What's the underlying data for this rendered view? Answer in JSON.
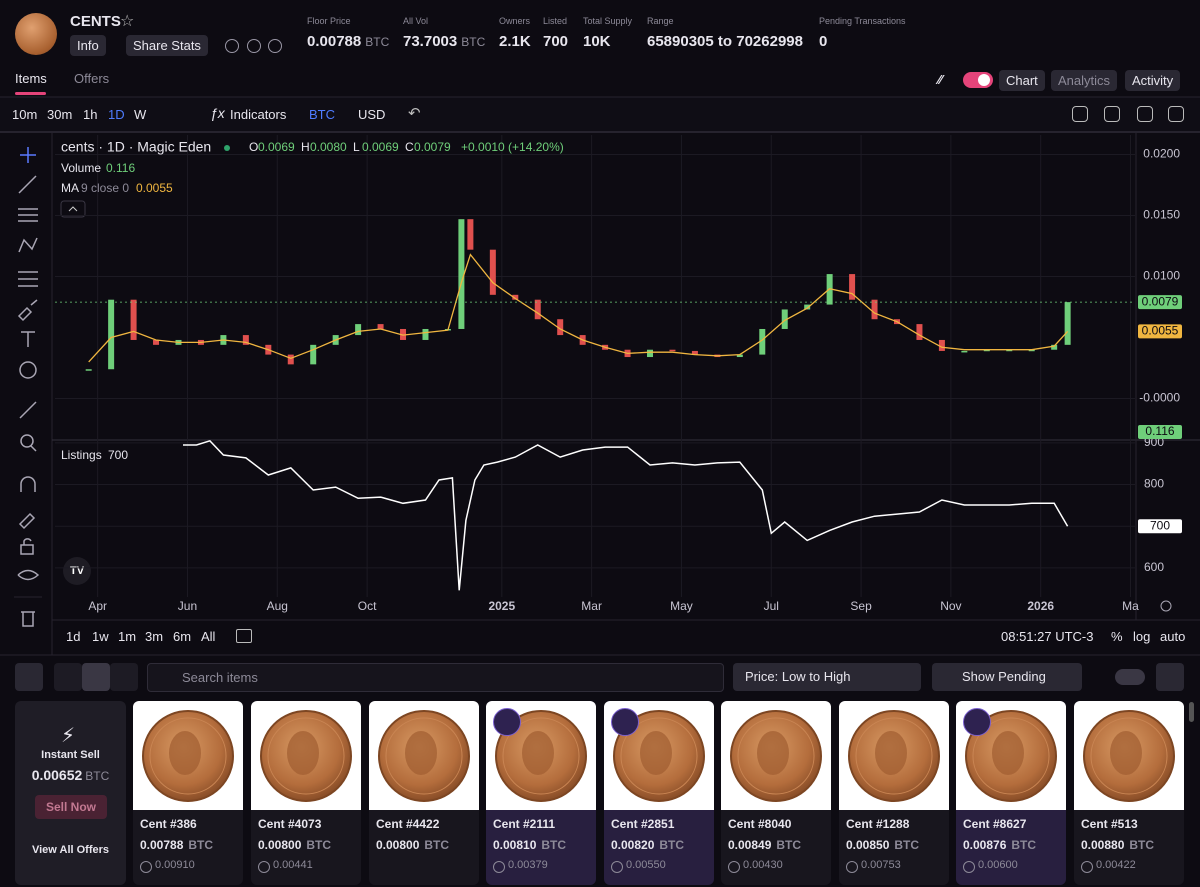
{
  "header": {
    "name": "CENTS",
    "buttons": [
      "Info",
      "Share Stats"
    ],
    "stats": [
      {
        "label": "Floor Price",
        "value": "0.00788",
        "unit": "BTC"
      },
      {
        "label": "All Vol",
        "value": "73.7003",
        "unit": "BTC"
      },
      {
        "label": "Owners",
        "value": "2.1K"
      },
      {
        "label": "Listed",
        "value": "700"
      },
      {
        "label": "Total Supply",
        "value": "10K"
      },
      {
        "label": "Range",
        "value": "65890305 to 70262998"
      },
      {
        "label": "Pending Transactions",
        "value": "0"
      }
    ]
  },
  "tabs": [
    "Items",
    "Offers"
  ],
  "views": [
    "Chart",
    "Analytics",
    "Activity"
  ],
  "toolbar": {
    "intervals": [
      "10m",
      "30m",
      "1h",
      "1D",
      "W"
    ],
    "indicators": "Indicators",
    "currencies": [
      "BTC",
      "USD"
    ]
  },
  "chart": {
    "title": "cents · 1D · Magic Eden",
    "ohlc": [
      {
        "key": "O",
        "value": "0.0069"
      },
      {
        "key": "H",
        "value": "0.0080"
      },
      {
        "key": "L",
        "value": "0.0069"
      },
      {
        "key": "C",
        "value": "0.0079"
      }
    ],
    "change": "+0.0010 (+14.20%)",
    "volume_label": "Volume",
    "volume": 0.116,
    "ma_label": "MA",
    "ma_params": "9 close 0",
    "xlim": [
      3.05,
      27.1
    ],
    "xticks": [
      {
        "value": 4,
        "label": "Apr"
      },
      {
        "value": 6,
        "label": "Jun"
      },
      {
        "value": 8,
        "label": "Aug"
      },
      {
        "value": 10,
        "label": "Oct"
      },
      {
        "value": 13,
        "label": "2025"
      },
      {
        "value": 15,
        "label": "Mar"
      },
      {
        "value": 17,
        "label": "May"
      },
      {
        "value": 19,
        "label": "Jul"
      },
      {
        "value": 21,
        "label": "Sep"
      },
      {
        "value": 23,
        "label": "Nov"
      },
      {
        "value": 25,
        "label": "2026"
      },
      {
        "value": 27,
        "label": "Ma"
      }
    ],
    "price": {
      "type": "candlestick",
      "up_color": "#6fcf7a",
      "down_color": "#e0504e",
      "ma_color": "#f0b640",
      "x": [
        3.8,
        4.3,
        4.8,
        5.3,
        5.8,
        6.3,
        6.8,
        7.3,
        7.8,
        8.3,
        8.8,
        9.3,
        9.8,
        10.3,
        10.8,
        11.3,
        11.8,
        12.1,
        12.3,
        12.8,
        13.3,
        13.8,
        14.3,
        14.8,
        15.3,
        15.8,
        16.3,
        16.8,
        17.3,
        17.8,
        18.3,
        18.8,
        19.3,
        19.8,
        20.3,
        20.8,
        21.3,
        21.8,
        22.3,
        22.8,
        23.3,
        23.8,
        24.3,
        24.8,
        25.3,
        25.6
      ],
      "values": [
        0.0024,
        0.0081,
        0.0048,
        0.0044,
        0.0048,
        0.0044,
        0.0052,
        0.0044,
        0.0036,
        0.0028,
        0.0044,
        0.0052,
        0.0061,
        0.0057,
        0.0048,
        0.0057,
        0.0057,
        0.0147,
        0.0122,
        0.0085,
        0.0081,
        0.0065,
        0.0052,
        0.0044,
        0.004,
        0.0034,
        0.004,
        0.0039,
        0.0036,
        0.0034,
        0.0036,
        0.0057,
        0.0073,
        0.0077,
        0.0102,
        0.0081,
        0.0065,
        0.0061,
        0.0048,
        0.0039,
        0.0039,
        0.004,
        0.004,
        0.004,
        0.0044,
        0.0079
      ],
      "ma": [
        0.003,
        0.005,
        0.0055,
        0.0048,
        0.0046,
        0.0046,
        0.0048,
        0.0046,
        0.004,
        0.0033,
        0.004,
        0.0048,
        0.0055,
        0.0057,
        0.0052,
        0.0054,
        0.0056,
        0.0095,
        0.0118,
        0.0095,
        0.0082,
        0.007,
        0.0057,
        0.0048,
        0.0042,
        0.0037,
        0.0038,
        0.0038,
        0.0036,
        0.0035,
        0.0036,
        0.0048,
        0.0064,
        0.0074,
        0.009,
        0.0086,
        0.007,
        0.0063,
        0.0052,
        0.0042,
        0.004,
        0.004,
        0.004,
        0.004,
        0.0043,
        0.0055
      ],
      "ylim": [
        -0.0034,
        0.0216
      ],
      "yticks": [
        {
          "value": 0.02,
          "label": "0.0200"
        },
        {
          "value": 0.015,
          "label": "0.0150"
        },
        {
          "value": 0.01,
          "label": "0.0100"
        },
        {
          "value": 0,
          "label": "-0.0000"
        }
      ]
    },
    "listings": {
      "type": "line",
      "name": "Listings",
      "color": "#ffffff",
      "x": [
        5.9,
        6.2,
        6.5,
        6.8,
        7.3,
        7.8,
        8.3,
        8.8,
        9.3,
        9.8,
        10.3,
        10.8,
        11.3,
        11.6,
        11.9,
        12.05,
        12.2,
        12.4,
        12.6,
        12.9,
        13.3,
        13.8,
        14.3,
        14.8,
        15.3,
        15.8,
        16.3,
        16.8,
        17.3,
        17.8,
        18.3,
        18.8,
        19.0,
        19.3,
        19.8,
        20.3,
        20.8,
        21.3,
        21.8,
        22.3,
        22.8,
        23.3,
        23.8,
        24.3,
        24.8,
        25.3,
        25.6
      ],
      "values": [
        895,
        895,
        905,
        871,
        864,
        823,
        840,
        787,
        794,
        767,
        770,
        755,
        763,
        811,
        816,
        546,
        714,
        811,
        847,
        854,
        866,
        895,
        866,
        883,
        890,
        890,
        847,
        852,
        847,
        852,
        854,
        787,
        683,
        710,
        666,
        690,
        710,
        724,
        729,
        734,
        763,
        751,
        751,
        751,
        755,
        755,
        700
      ],
      "ylim": [
        530,
        907
      ],
      "yticks": [
        900,
        800,
        700,
        600
      ]
    }
  },
  "bottom_bar": {
    "ranges": [
      "1d",
      "1w",
      "1m",
      "3m",
      "6m",
      "All"
    ],
    "time": "08:51:27 UTC-3",
    "scales": [
      "%",
      "log",
      "auto"
    ]
  },
  "filters": {
    "search": "Search items",
    "sort": "Price: Low to High",
    "pending": "Show Pending"
  },
  "currency": "BTC",
  "instant_sell": {
    "title": "Instant Sell",
    "price": "0.00652",
    "button": "Sell Now",
    "link": "View All Offers"
  },
  "cards": [
    {
      "name": "Cent #386",
      "price": "0.00788",
      "last": "0.00910",
      "badge": false
    },
    {
      "name": "Cent #4073",
      "price": "0.00800",
      "last": "0.00441",
      "badge": false
    },
    {
      "name": "Cent #4422",
      "price": "0.00800",
      "badge": false
    },
    {
      "name": "Cent #2111",
      "price": "0.00810",
      "last": "0.00379",
      "badge": true
    },
    {
      "name": "Cent #2851",
      "price": "0.00820",
      "last": "0.00550",
      "badge": true
    },
    {
      "name": "Cent #8040",
      "price": "0.00849",
      "last": "0.00430",
      "badge": false
    },
    {
      "name": "Cent #1288",
      "price": "0.00850",
      "last": "0.00753",
      "badge": false
    },
    {
      "name": "Cent #8627",
      "price": "0.00876",
      "last": "0.00600",
      "badge": true
    },
    {
      "name": "Cent #513",
      "price": "0.00880",
      "last": "0.00422",
      "badge": false
    }
  ]
}
